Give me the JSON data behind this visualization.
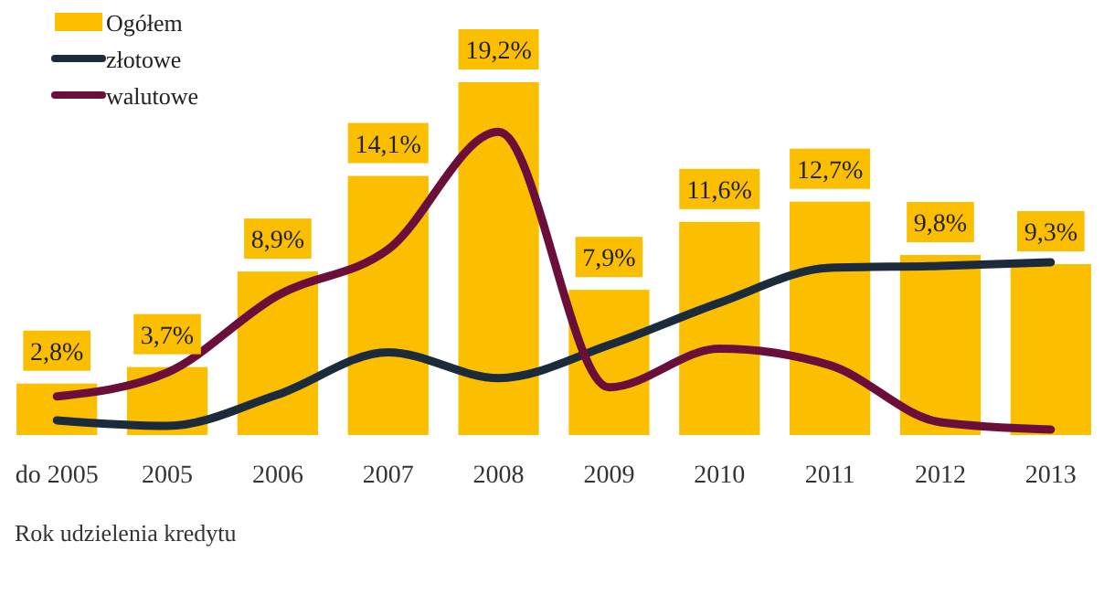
{
  "chart_data": {
    "type": "bar",
    "xlabel": "Rok udzielenia kredytu",
    "categories": [
      "do 2005",
      "2005",
      "2006",
      "2007",
      "2008",
      "2009",
      "2010",
      "2011",
      "2012",
      "2013"
    ],
    "legend": "top left",
    "tick_labels": "x",
    "series": [
      {
        "name": "Ogółem",
        "color": "#fbbf00",
        "values": [
          2.8,
          3.7,
          8.9,
          14.1,
          19.2,
          7.9,
          11.6,
          12.7,
          9.8,
          9.3
        ],
        "value_labels": [
          "2,8%",
          "3,7%",
          "8,9%",
          "14,1%",
          "19,2%",
          "7,9%",
          "11,6%",
          "12,7%",
          "9,8%",
          "9,3%"
        ]
      },
      {
        "name": "złotowe",
        "type": "line",
        "color": "#1c2b3c",
        "values": [
          0.8,
          0.5,
          2.2,
          4.5,
          3.1,
          4.9,
          7.2,
          9.1,
          9.2,
          9.4
        ]
      },
      {
        "name": "walutowe",
        "type": "line",
        "color": "#6b0f3a",
        "values": [
          2.1,
          3.4,
          7.6,
          10.1,
          16.5,
          2.6,
          4.7,
          3.8,
          0.7,
          0.3
        ]
      }
    ]
  }
}
